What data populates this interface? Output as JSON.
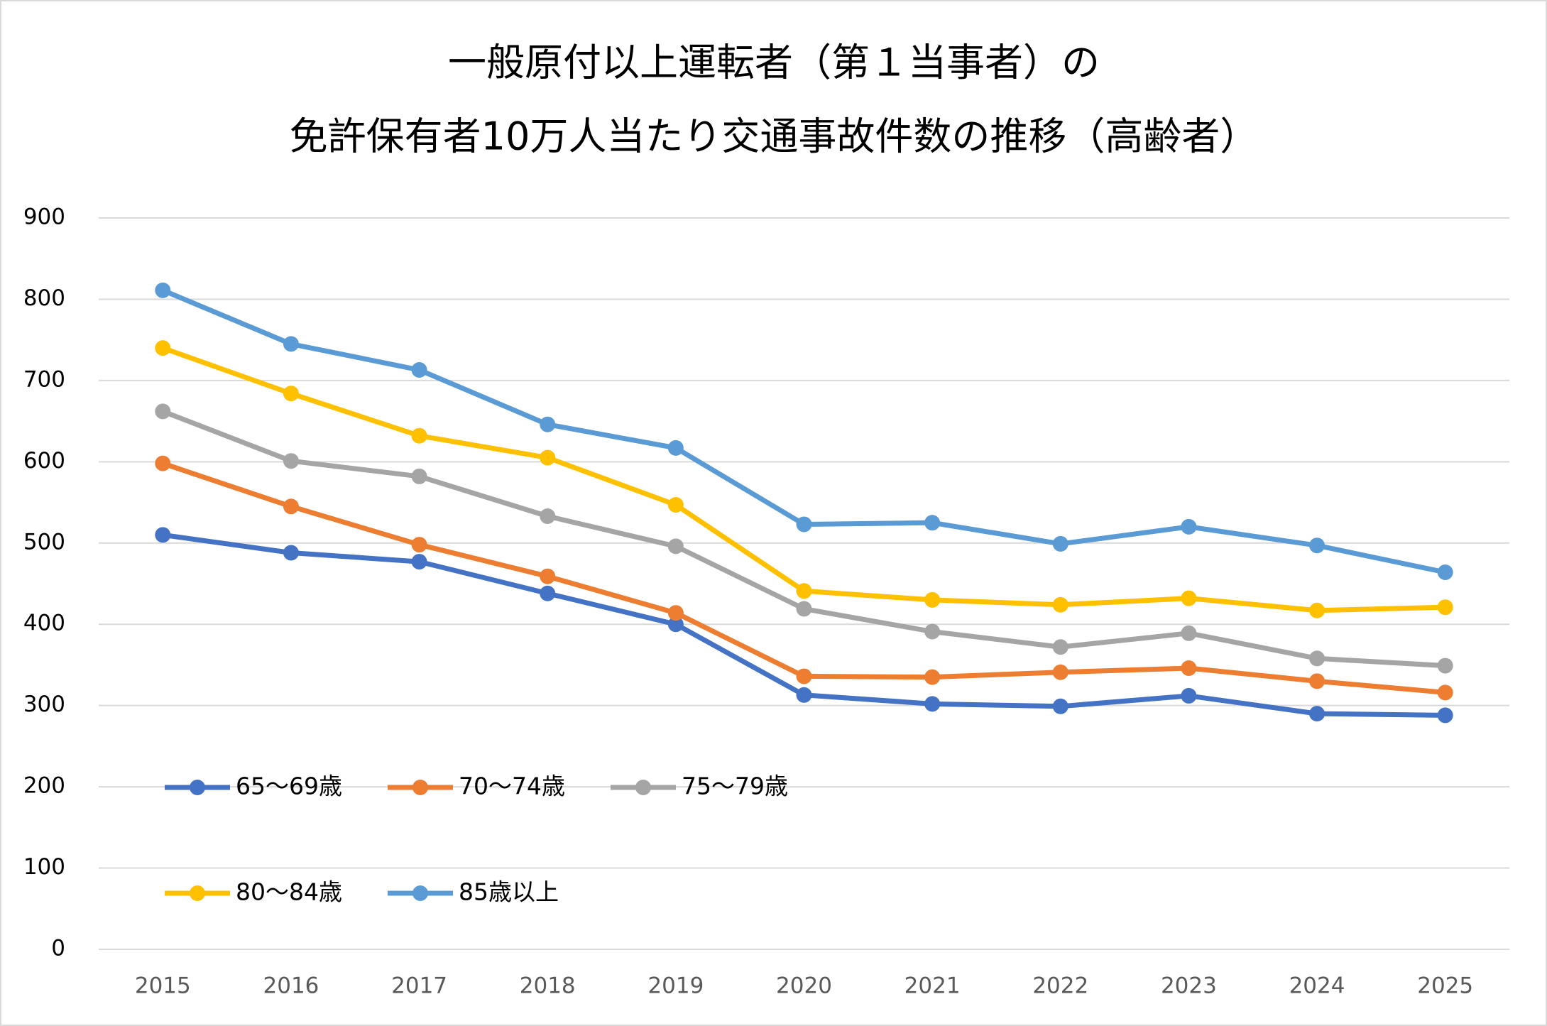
{
  "chart_data": {
    "type": "line",
    "title": [
      "一般原付以上運転者（第１当事者）の",
      "免許保有者10万人当たり交通事故件数の推移（高齢者）"
    ],
    "categories": [
      "2015",
      "2016",
      "2017",
      "2018",
      "2019",
      "2020",
      "2021",
      "2022",
      "2023",
      "2024",
      "2025"
    ],
    "series": [
      {
        "name": "65～69歳",
        "color": "#4472c4",
        "values": [
          510,
          488,
          477,
          438,
          400,
          313,
          302,
          299,
          312,
          290,
          288
        ]
      },
      {
        "name": "70～74歳",
        "color": "#ed7d31",
        "values": [
          598,
          545,
          498,
          459,
          414,
          336,
          335,
          341,
          346,
          330,
          316
        ]
      },
      {
        "name": "75～79歳",
        "color": "#a5a5a5",
        "values": [
          662,
          601,
          582,
          533,
          496,
          419,
          391,
          372,
          389,
          358,
          349
        ]
      },
      {
        "name": "80～84歳",
        "color": "#ffc000",
        "values": [
          740,
          684,
          632,
          605,
          547,
          441,
          430,
          424,
          432,
          417,
          421
        ]
      },
      {
        "name": "85歳以上",
        "color": "#5b9bd5",
        "values": [
          811,
          745,
          713,
          646,
          617,
          523,
          525,
          499,
          520,
          497,
          464
        ]
      }
    ],
    "ylim": [
      0,
      900
    ],
    "yticks": [
      0,
      100,
      200,
      300,
      400,
      500,
      600,
      700,
      800,
      900
    ],
    "grid": true
  }
}
